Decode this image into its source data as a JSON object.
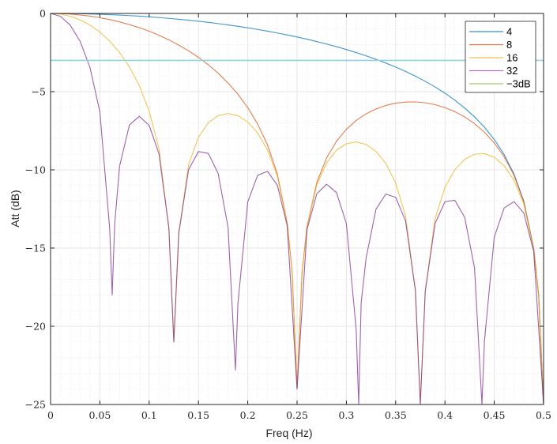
{
  "chart_data": {
    "type": "line",
    "title": "",
    "xlabel": "Freq (Hz)",
    "ylabel": "Att (dB)",
    "xlim": [
      0,
      0.5
    ],
    "ylim": [
      -25,
      0
    ],
    "xticks": [
      0,
      0.05,
      0.1,
      0.15,
      0.2,
      0.25,
      0.3,
      0.35,
      0.4,
      0.45,
      0.5
    ],
    "xtick_labels": [
      "0",
      "0.05",
      "0.1",
      "0.15",
      "0.2",
      "0.25",
      "0.3",
      "0.35",
      "0.4",
      "0.45",
      "0.5"
    ],
    "yticks": [
      0,
      -5,
      -10,
      -15,
      -20,
      -25
    ],
    "ytick_labels": [
      "0",
      "−5",
      "−10",
      "−15",
      "−20",
      "−25"
    ],
    "grid": true,
    "minor_grid": true,
    "legend_position": "top-right",
    "series": [
      {
        "name": "4",
        "color": "#0072BD",
        "x": [
          0,
          0.01,
          0.02,
          0.03,
          0.04,
          0.05,
          0.06,
          0.07,
          0.08,
          0.09,
          0.1,
          0.11,
          0.12,
          0.13,
          0.14,
          0.15,
          0.16,
          0.17,
          0.18,
          0.19,
          0.2,
          0.21,
          0.22,
          0.23,
          0.24,
          0.25,
          0.26,
          0.27,
          0.28,
          0.29,
          0.3,
          0.31,
          0.32,
          0.33,
          0.34,
          0.35,
          0.36,
          0.37,
          0.38,
          0.39,
          0.4,
          0.41,
          0.42,
          0.43,
          0.44,
          0.45,
          0.46,
          0.47,
          0.48,
          0.49,
          0.495,
          0.5
        ],
        "values": [
          0,
          -0.002,
          -0.009,
          -0.019,
          -0.034,
          -0.054,
          -0.078,
          -0.106,
          -0.139,
          -0.176,
          -0.218,
          -0.265,
          -0.316,
          -0.373,
          -0.434,
          -0.501,
          -0.573,
          -0.651,
          -0.735,
          -0.824,
          -0.92,
          -1.023,
          -1.132,
          -1.249,
          -1.373,
          -1.505,
          -1.646,
          -1.796,
          -1.956,
          -2.126,
          -2.308,
          -2.502,
          -2.71,
          -2.933,
          -3.172,
          -3.429,
          -3.708,
          -4.01,
          -4.34,
          -4.701,
          -5.1,
          -5.544,
          -6.044,
          -6.613,
          -7.273,
          -8.056,
          -9.019,
          -10.263,
          -12.021,
          -15.03,
          -18.0,
          -25
        ]
      },
      {
        "name": "8",
        "color": "#D95319",
        "x": [
          0,
          0.01,
          0.02,
          0.03,
          0.04,
          0.05,
          0.06,
          0.07,
          0.08,
          0.09,
          0.1,
          0.11,
          0.12,
          0.13,
          0.14,
          0.15,
          0.16,
          0.17,
          0.18,
          0.19,
          0.2,
          0.21,
          0.22,
          0.23,
          0.24,
          0.245,
          0.25,
          0.255,
          0.26,
          0.27,
          0.28,
          0.29,
          0.3,
          0.31,
          0.32,
          0.33,
          0.34,
          0.35,
          0.36,
          0.37,
          0.38,
          0.39,
          0.4,
          0.41,
          0.42,
          0.43,
          0.44,
          0.45,
          0.46,
          0.47,
          0.48,
          0.49,
          0.495,
          0.5
        ],
        "values": [
          0,
          -0.011,
          -0.043,
          -0.097,
          -0.173,
          -0.272,
          -0.394,
          -0.54,
          -0.712,
          -0.911,
          -1.138,
          -1.397,
          -1.689,
          -2.019,
          -2.39,
          -2.809,
          -3.283,
          -3.823,
          -4.443,
          -5.164,
          -6.02,
          -7.067,
          -8.405,
          -10.268,
          -13.394,
          -16.5,
          -24.0,
          -16.6,
          -13.667,
          -10.815,
          -9.229,
          -8.17,
          -7.408,
          -6.842,
          -6.418,
          -6.105,
          -5.882,
          -5.737,
          -5.664,
          -5.656,
          -5.713,
          -5.833,
          -6.02,
          -6.279,
          -6.617,
          -7.047,
          -7.589,
          -8.274,
          -9.158,
          -10.341,
          -12.055,
          -15.039,
          -18.0,
          -25
        ]
      },
      {
        "name": "16",
        "color": "#EDB120",
        "x": [
          0,
          0.01,
          0.02,
          0.03,
          0.04,
          0.05,
          0.06,
          0.07,
          0.08,
          0.09,
          0.1,
          0.11,
          0.12,
          0.125,
          0.13,
          0.14,
          0.15,
          0.16,
          0.17,
          0.18,
          0.19,
          0.2,
          0.21,
          0.22,
          0.23,
          0.24,
          0.245,
          0.25,
          0.255,
          0.26,
          0.27,
          0.28,
          0.29,
          0.3,
          0.31,
          0.32,
          0.33,
          0.34,
          0.35,
          0.36,
          0.37,
          0.375,
          0.38,
          0.39,
          0.4,
          0.41,
          0.42,
          0.43,
          0.44,
          0.45,
          0.46,
          0.47,
          0.48,
          0.49,
          0.495,
          0.5
        ],
        "values": [
          0,
          -0.045,
          -0.182,
          -0.413,
          -0.746,
          -1.192,
          -1.767,
          -2.496,
          -3.422,
          -4.619,
          -6.238,
          -8.67,
          -13.71,
          -21.0,
          -14.04,
          -9.663,
          -7.909,
          -6.991,
          -6.533,
          -6.399,
          -6.537,
          -6.94,
          -7.64,
          -8.721,
          -10.407,
          -13.428,
          -16.5,
          -24.0,
          -16.6,
          -13.701,
          -10.954,
          -9.545,
          -8.743,
          -8.328,
          -8.215,
          -8.374,
          -8.815,
          -9.59,
          -10.837,
          -12.937,
          -17.677,
          -25,
          -17.734,
          -13.106,
          -11.12,
          -9.987,
          -9.327,
          -9.003,
          -8.962,
          -9.194,
          -9.731,
          -10.657,
          -12.194,
          -15.073,
          -18.0,
          -25
        ]
      },
      {
        "name": "32",
        "color": "#7E2F8E",
        "x": [
          0,
          0.01,
          0.02,
          0.03,
          0.04,
          0.05,
          0.06,
          0.0625,
          0.065,
          0.07,
          0.08,
          0.09,
          0.1,
          0.11,
          0.12,
          0.125,
          0.13,
          0.14,
          0.15,
          0.16,
          0.17,
          0.18,
          0.1875,
          0.19,
          0.2,
          0.21,
          0.22,
          0.23,
          0.24,
          0.25,
          0.26,
          0.27,
          0.28,
          0.29,
          0.3,
          0.31,
          0.3125,
          0.315,
          0.32,
          0.33,
          0.34,
          0.35,
          0.36,
          0.37,
          0.375,
          0.38,
          0.39,
          0.4,
          0.41,
          0.42,
          0.43,
          0.4375,
          0.44,
          0.45,
          0.46,
          0.47,
          0.48,
          0.49,
          0.5
        ],
        "values": [
          0,
          -0.184,
          -0.755,
          -1.786,
          -3.456,
          -6.292,
          -13.79,
          -18.0,
          -13.5,
          -9.769,
          -7.13,
          -6.575,
          -7.158,
          -8.986,
          -13.744,
          -21.0,
          -14.074,
          -9.979,
          -8.829,
          -8.947,
          -10.241,
          -13.672,
          -22.8,
          -18.558,
          -12.04,
          -10.35,
          -10.094,
          -10.98,
          -13.567,
          -24.0,
          -13.84,
          -11.527,
          -10.918,
          -11.453,
          -13.428,
          -20.236,
          -25,
          -18.5,
          -15.647,
          -12.523,
          -11.546,
          -11.757,
          -13.253,
          -17.711,
          -25,
          -17.768,
          -13.422,
          -12.04,
          -11.943,
          -13.035,
          -16.276,
          -25,
          -20.983,
          -14.294,
          -12.441,
          -12.03,
          -12.767,
          -15.212,
          -25
        ]
      },
      {
        "name": "−3dB",
        "color": "#77AC30",
        "x": [
          0,
          0.5
        ],
        "values": [
          -3,
          -3
        ],
        "render_color": "#8FD3E8"
      }
    ]
  },
  "legend": {
    "items": [
      {
        "label": "4",
        "color": "#3A8FD0"
      },
      {
        "label": "8",
        "color": "#E07B4E"
      },
      {
        "label": "16",
        "color": "#F2C14E"
      },
      {
        "label": "32",
        "color": "#B56FC8"
      },
      {
        "label": "−3dB",
        "color": "#9CCC65"
      }
    ]
  }
}
